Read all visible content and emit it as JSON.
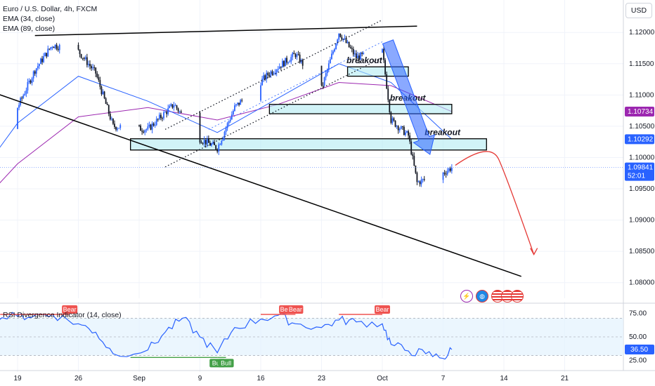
{
  "legend": {
    "title": "Euro / U.S. Dollar, 4h, FXCM",
    "ema1": "EMA (34, close)",
    "ema2": "EMA (89, close)",
    "rsi": "RSI Divergence Indicator (14, close)"
  },
  "currency_button": "USD",
  "colors": {
    "up": "#2962ff",
    "down": "#131722",
    "ema34": "#2962ff",
    "ema89": "#9c27b0",
    "zone_fill": "#b2ebf2",
    "arrow": "#2962ff",
    "projection": "#e53935",
    "rsi_line": "#2962ff",
    "bull": "#43a047",
    "bear": "#ef5350",
    "ema89_tag": "#9c27b0",
    "ema34_tag": "#2962ff",
    "price_tag": "#2962ff"
  },
  "icons": [
    "lightning-icon",
    "globe-icon",
    "us-flag-icon",
    "us-flag-icon",
    "us-flag-icon"
  ],
  "chart_data": [
    {
      "type": "candlestick",
      "symbol": "Euro / U.S. Dollar",
      "timeframe": "4h",
      "source": "FXCM",
      "x_ticks": [
        "19",
        "26",
        "Sep",
        "9",
        "16",
        "23",
        "Oct",
        "7",
        "14",
        "21"
      ],
      "y_ticks": [
        "1.12000",
        "1.11500",
        "1.11000",
        "1.10500",
        "1.10000",
        "1.09500",
        "1.09000",
        "1.08500",
        "1.08000"
      ],
      "ylim": [
        1.0775,
        1.1235
      ],
      "price_labels": [
        {
          "value": "1.10734",
          "series": "EMA (89, close)"
        },
        {
          "value": "1.10292",
          "series": "EMA (34, close)"
        },
        {
          "value": "1.09841",
          "series": "last price",
          "countdown": "52:01"
        }
      ],
      "last_price": 1.09841,
      "ohlc_close_path": [
        {
          "x": "2024-08-14",
          "close": 1.1005
        },
        {
          "x": "2024-08-16",
          "close": 1.103
        },
        {
          "x": "2024-08-19",
          "close": 1.108
        },
        {
          "x": "2024-08-21",
          "close": 1.114
        },
        {
          "x": "2024-08-23",
          "close": 1.118
        },
        {
          "x": "2024-08-26",
          "close": 1.117
        },
        {
          "x": "2024-08-28",
          "close": 1.1135
        },
        {
          "x": "2024-08-30",
          "close": 1.105
        },
        {
          "x": "2024-09-03",
          "close": 1.1045
        },
        {
          "x": "2024-09-06",
          "close": 1.1085
        },
        {
          "x": "2024-09-09",
          "close": 1.103
        },
        {
          "x": "2024-09-11",
          "close": 1.1015
        },
        {
          "x": "2024-09-13",
          "close": 1.108
        },
        {
          "x": "2024-09-17",
          "close": 1.1135
        },
        {
          "x": "2024-09-20",
          "close": 1.1165
        },
        {
          "x": "2024-09-23",
          "close": 1.111
        },
        {
          "x": "2024-09-25",
          "close": 1.12
        },
        {
          "x": "2024-09-27",
          "close": 1.116
        },
        {
          "x": "2024-09-30",
          "close": 1.117
        },
        {
          "x": "2024-10-01",
          "close": 1.106
        },
        {
          "x": "2024-10-03",
          "close": 1.1035
        },
        {
          "x": "2024-10-04",
          "close": 1.096
        },
        {
          "x": "2024-10-07",
          "close": 1.0975
        },
        {
          "x": "2024-10-08",
          "close": 1.09841
        }
      ],
      "ema_34_path": [
        {
          "x": "2024-08-14",
          "close": 1.096
        },
        {
          "x": "2024-08-19",
          "close": 1.1055
        },
        {
          "x": "2024-08-26",
          "close": 1.113
        },
        {
          "x": "2024-09-03",
          "close": 1.109
        },
        {
          "x": "2024-09-11",
          "close": 1.104
        },
        {
          "x": "2024-09-18",
          "close": 1.1095
        },
        {
          "x": "2024-09-25",
          "close": 1.115
        },
        {
          "x": "2024-10-01",
          "close": 1.112
        },
        {
          "x": "2024-10-08",
          "close": 1.10292
        }
      ],
      "ema_89_path": [
        {
          "x": "2024-08-14",
          "close": 1.0915
        },
        {
          "x": "2024-08-19",
          "close": 1.099
        },
        {
          "x": "2024-08-26",
          "close": 1.1065
        },
        {
          "x": "2024-09-03",
          "close": 1.108
        },
        {
          "x": "2024-09-11",
          "close": 1.106
        },
        {
          "x": "2024-09-18",
          "close": 1.1085
        },
        {
          "x": "2024-09-25",
          "close": 1.112
        },
        {
          "x": "2024-10-01",
          "close": 1.1115
        },
        {
          "x": "2024-10-08",
          "close": 1.10734
        }
      ],
      "annotations": [
        {
          "type": "zone",
          "label": "breakout",
          "x": [
            "2024-09-26",
            "2024-10-03"
          ],
          "y": [
            1.113,
            1.1145
          ]
        },
        {
          "type": "zone",
          "label": "breakout",
          "x": [
            "2024-09-17",
            "2024-10-08"
          ],
          "y": [
            1.107,
            1.1085
          ]
        },
        {
          "type": "zone",
          "label": "breakout",
          "x": [
            "2024-09-01",
            "2024-10-12"
          ],
          "y": [
            1.1012,
            1.103
          ]
        },
        {
          "type": "trendline",
          "label": "",
          "points": [
            [
              "2024-08-21",
              1.1195
            ],
            [
              "2024-10-04",
              1.121
            ]
          ]
        },
        {
          "type": "trendline",
          "label": "",
          "points": [
            [
              "2024-08-16",
              1.1105
            ],
            [
              "2024-10-16",
              1.081
            ]
          ]
        },
        {
          "type": "projection",
          "label": "",
          "points": [
            [
              "2024-10-08",
              1.101
            ],
            [
              "2024-10-13",
              1.0845
            ]
          ]
        }
      ]
    },
    {
      "type": "line",
      "title": "RSI Divergence Indicator (14, close)",
      "y_ticks": [
        "75.00",
        "50.00",
        "25.00"
      ],
      "ylim": [
        20,
        80
      ],
      "band": [
        30,
        70
      ],
      "last_value": "36.50",
      "series": [
        {
          "name": "RSI",
          "values": [
            [
              "2024-08-14",
              62
            ],
            [
              "2024-08-15",
              75
            ],
            [
              "2024-08-16",
              70
            ],
            [
              "2024-08-19",
              72
            ],
            [
              "2024-08-21",
              73
            ],
            [
              "2024-08-23",
              74
            ],
            [
              "2024-08-26",
              64
            ],
            [
              "2024-08-28",
              55
            ],
            [
              "2024-08-30",
              32
            ],
            [
              "2024-09-03",
              36
            ],
            [
              "2024-09-05",
              55
            ],
            [
              "2024-09-07",
              70
            ],
            [
              "2024-09-09",
              50
            ],
            [
              "2024-09-11",
              33
            ],
            [
              "2024-09-13",
              60
            ],
            [
              "2024-09-16",
              69
            ],
            [
              "2024-09-18",
              73
            ],
            [
              "2024-09-20",
              64
            ],
            [
              "2024-09-23",
              60
            ],
            [
              "2024-09-25",
              68
            ],
            [
              "2024-09-27",
              66
            ],
            [
              "2024-09-30",
              64
            ],
            [
              "2024-10-01",
              42
            ],
            [
              "2024-10-03",
              35
            ],
            [
              "2024-10-05",
              32
            ],
            [
              "2024-10-07",
              27
            ],
            [
              "2024-10-08",
              36.5
            ]
          ]
        }
      ],
      "divergences": [
        {
          "label": "Bear",
          "x": [
            "2024-08-17",
            "2024-08-25"
          ]
        },
        {
          "label": "Bull",
          "x": [
            "2024-09-01",
            "2024-09-11"
          ]
        },
        {
          "label": "Bull",
          "x": [
            "2024-09-11",
            "2024-09-12"
          ]
        },
        {
          "label": "Bear",
          "x": [
            "2024-09-16",
            "2024-09-19"
          ]
        },
        {
          "label": "Bear",
          "x": [
            "2024-09-19",
            "2024-09-20"
          ]
        },
        {
          "label": "Bear",
          "x": [
            "2024-09-25",
            "2024-09-30"
          ]
        }
      ]
    }
  ]
}
